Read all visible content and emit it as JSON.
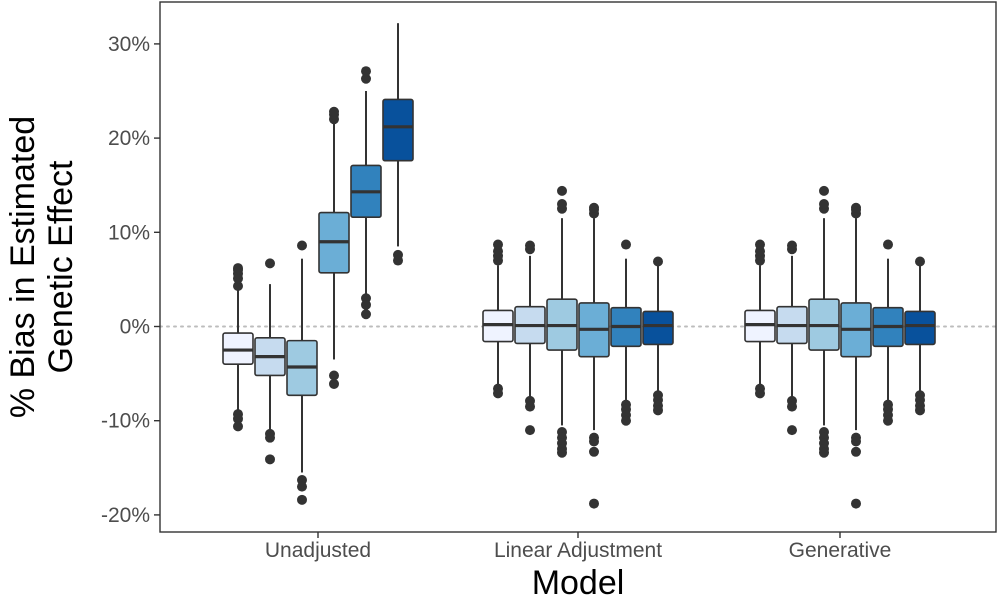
{
  "chart_data": {
    "type": "boxplot",
    "title": "",
    "xlabel": "Model",
    "ylabel_lines": [
      "% Bias in Estimated",
      "Genetic Effect"
    ],
    "categories": [
      "Unadjusted",
      "Linear Adjustment",
      "Generative"
    ],
    "ylim": [
      -21,
      34
    ],
    "yticks": [
      {
        "value": -20,
        "label": "-20%"
      },
      {
        "value": -10,
        "label": "-10%"
      },
      {
        "value": 0,
        "label": "0%"
      },
      {
        "value": 10,
        "label": "10%"
      },
      {
        "value": 20,
        "label": "20%"
      },
      {
        "value": 30,
        "label": "30%"
      }
    ],
    "reference_line": 0,
    "legend": "none",
    "fill_colors": [
      "#eff3ff",
      "#c6dbef",
      "#9ecae1",
      "#6baed6",
      "#3182bd",
      "#08519c"
    ],
    "series": [
      {
        "name": "Unadjusted",
        "boxes": [
          {
            "q1": -4.0,
            "median": -2.5,
            "q3": -0.7,
            "whisker_low": -9.0,
            "whisker_high": 4.0,
            "outliers": [
              4.3,
              5.1,
              5.6,
              6.0,
              6.2,
              -9.3,
              -9.8,
              -10.6
            ]
          },
          {
            "q1": -5.2,
            "median": -3.2,
            "q3": -1.2,
            "whisker_low": -11.0,
            "whisker_high": 4.5,
            "outliers": [
              6.7,
              -11.4,
              -11.8,
              -14.1
            ]
          },
          {
            "q1": -7.3,
            "median": -4.3,
            "q3": -1.5,
            "whisker_low": -15.5,
            "whisker_high": 7.2,
            "outliers": [
              8.6,
              -16.3,
              -17.0,
              -18.4
            ]
          },
          {
            "q1": 5.7,
            "median": 9.0,
            "q3": 12.1,
            "whisker_low": -3.5,
            "whisker_high": 21.5,
            "outliers": [
              22.0,
              22.5,
              22.8,
              -5.2,
              -6.1
            ]
          },
          {
            "q1": 11.6,
            "median": 14.3,
            "q3": 17.1,
            "whisker_low": 3.5,
            "whisker_high": 25.0,
            "outliers": [
              26.3,
              27.1,
              3.0,
              2.3,
              1.3
            ]
          },
          {
            "q1": 17.6,
            "median": 21.2,
            "q3": 24.1,
            "whisker_low": 8.5,
            "whisker_high": 32.2,
            "outliers": [
              7.6,
              7.0
            ]
          }
        ]
      },
      {
        "name": "Linear Adjustment",
        "boxes": [
          {
            "q1": -1.6,
            "median": 0.2,
            "q3": 1.7,
            "whisker_low": -6.2,
            "whisker_high": 6.5,
            "outliers": [
              7.0,
              7.5,
              8.0,
              8.7,
              -6.6,
              -7.1
            ]
          },
          {
            "q1": -1.8,
            "median": 0.1,
            "q3": 2.1,
            "whisker_low": -7.5,
            "whisker_high": 7.5,
            "outliers": [
              8.2,
              8.6,
              -7.9,
              -8.5,
              -11.0
            ]
          },
          {
            "q1": -2.5,
            "median": 0.1,
            "q3": 2.9,
            "whisker_low": -10.5,
            "whisker_high": 11.5,
            "outliers": [
              12.5,
              13.0,
              14.4,
              -11.2,
              -11.8,
              -12.4,
              -13.0,
              -13.4
            ]
          },
          {
            "q1": -3.2,
            "median": -0.3,
            "q3": 2.5,
            "whisker_low": -11.0,
            "whisker_high": 11.5,
            "outliers": [
              12.0,
              12.4,
              12.6,
              -11.8,
              -12.2,
              -13.3,
              -18.8
            ]
          },
          {
            "q1": -2.1,
            "median": 0.0,
            "q3": 2.0,
            "whisker_low": -7.8,
            "whisker_high": 7.2,
            "outliers": [
              8.7,
              -8.3,
              -8.8,
              -9.4,
              -10.0
            ]
          },
          {
            "q1": -1.9,
            "median": 0.1,
            "q3": 1.6,
            "whisker_low": -6.8,
            "whisker_high": 6.5,
            "outliers": [
              6.9,
              -7.3,
              -7.8,
              -8.4,
              -8.9
            ]
          }
        ]
      },
      {
        "name": "Generative",
        "boxes": [
          {
            "q1": -1.6,
            "median": 0.2,
            "q3": 1.7,
            "whisker_low": -6.2,
            "whisker_high": 6.5,
            "outliers": [
              7.0,
              7.5,
              8.0,
              8.7,
              -6.6,
              -7.1
            ]
          },
          {
            "q1": -1.8,
            "median": 0.1,
            "q3": 2.1,
            "whisker_low": -7.5,
            "whisker_high": 7.5,
            "outliers": [
              8.2,
              8.6,
              -7.9,
              -8.5,
              -11.0
            ]
          },
          {
            "q1": -2.5,
            "median": 0.1,
            "q3": 2.9,
            "whisker_low": -10.5,
            "whisker_high": 11.5,
            "outliers": [
              12.5,
              13.0,
              14.4,
              -11.2,
              -11.8,
              -12.4,
              -13.0,
              -13.4
            ]
          },
          {
            "q1": -3.2,
            "median": -0.3,
            "q3": 2.5,
            "whisker_low": -11.0,
            "whisker_high": 11.5,
            "outliers": [
              12.0,
              12.4,
              12.6,
              -11.8,
              -12.2,
              -13.3,
              -18.8
            ]
          },
          {
            "q1": -2.1,
            "median": 0.0,
            "q3": 2.0,
            "whisker_low": -7.8,
            "whisker_high": 7.2,
            "outliers": [
              8.7,
              -8.3,
              -8.8,
              -9.4,
              -10.0
            ]
          },
          {
            "q1": -1.9,
            "median": 0.1,
            "q3": 1.6,
            "whisker_low": -6.8,
            "whisker_high": 6.5,
            "outliers": [
              6.9,
              -7.3,
              -7.8,
              -8.4,
              -8.9
            ]
          }
        ]
      }
    ]
  }
}
